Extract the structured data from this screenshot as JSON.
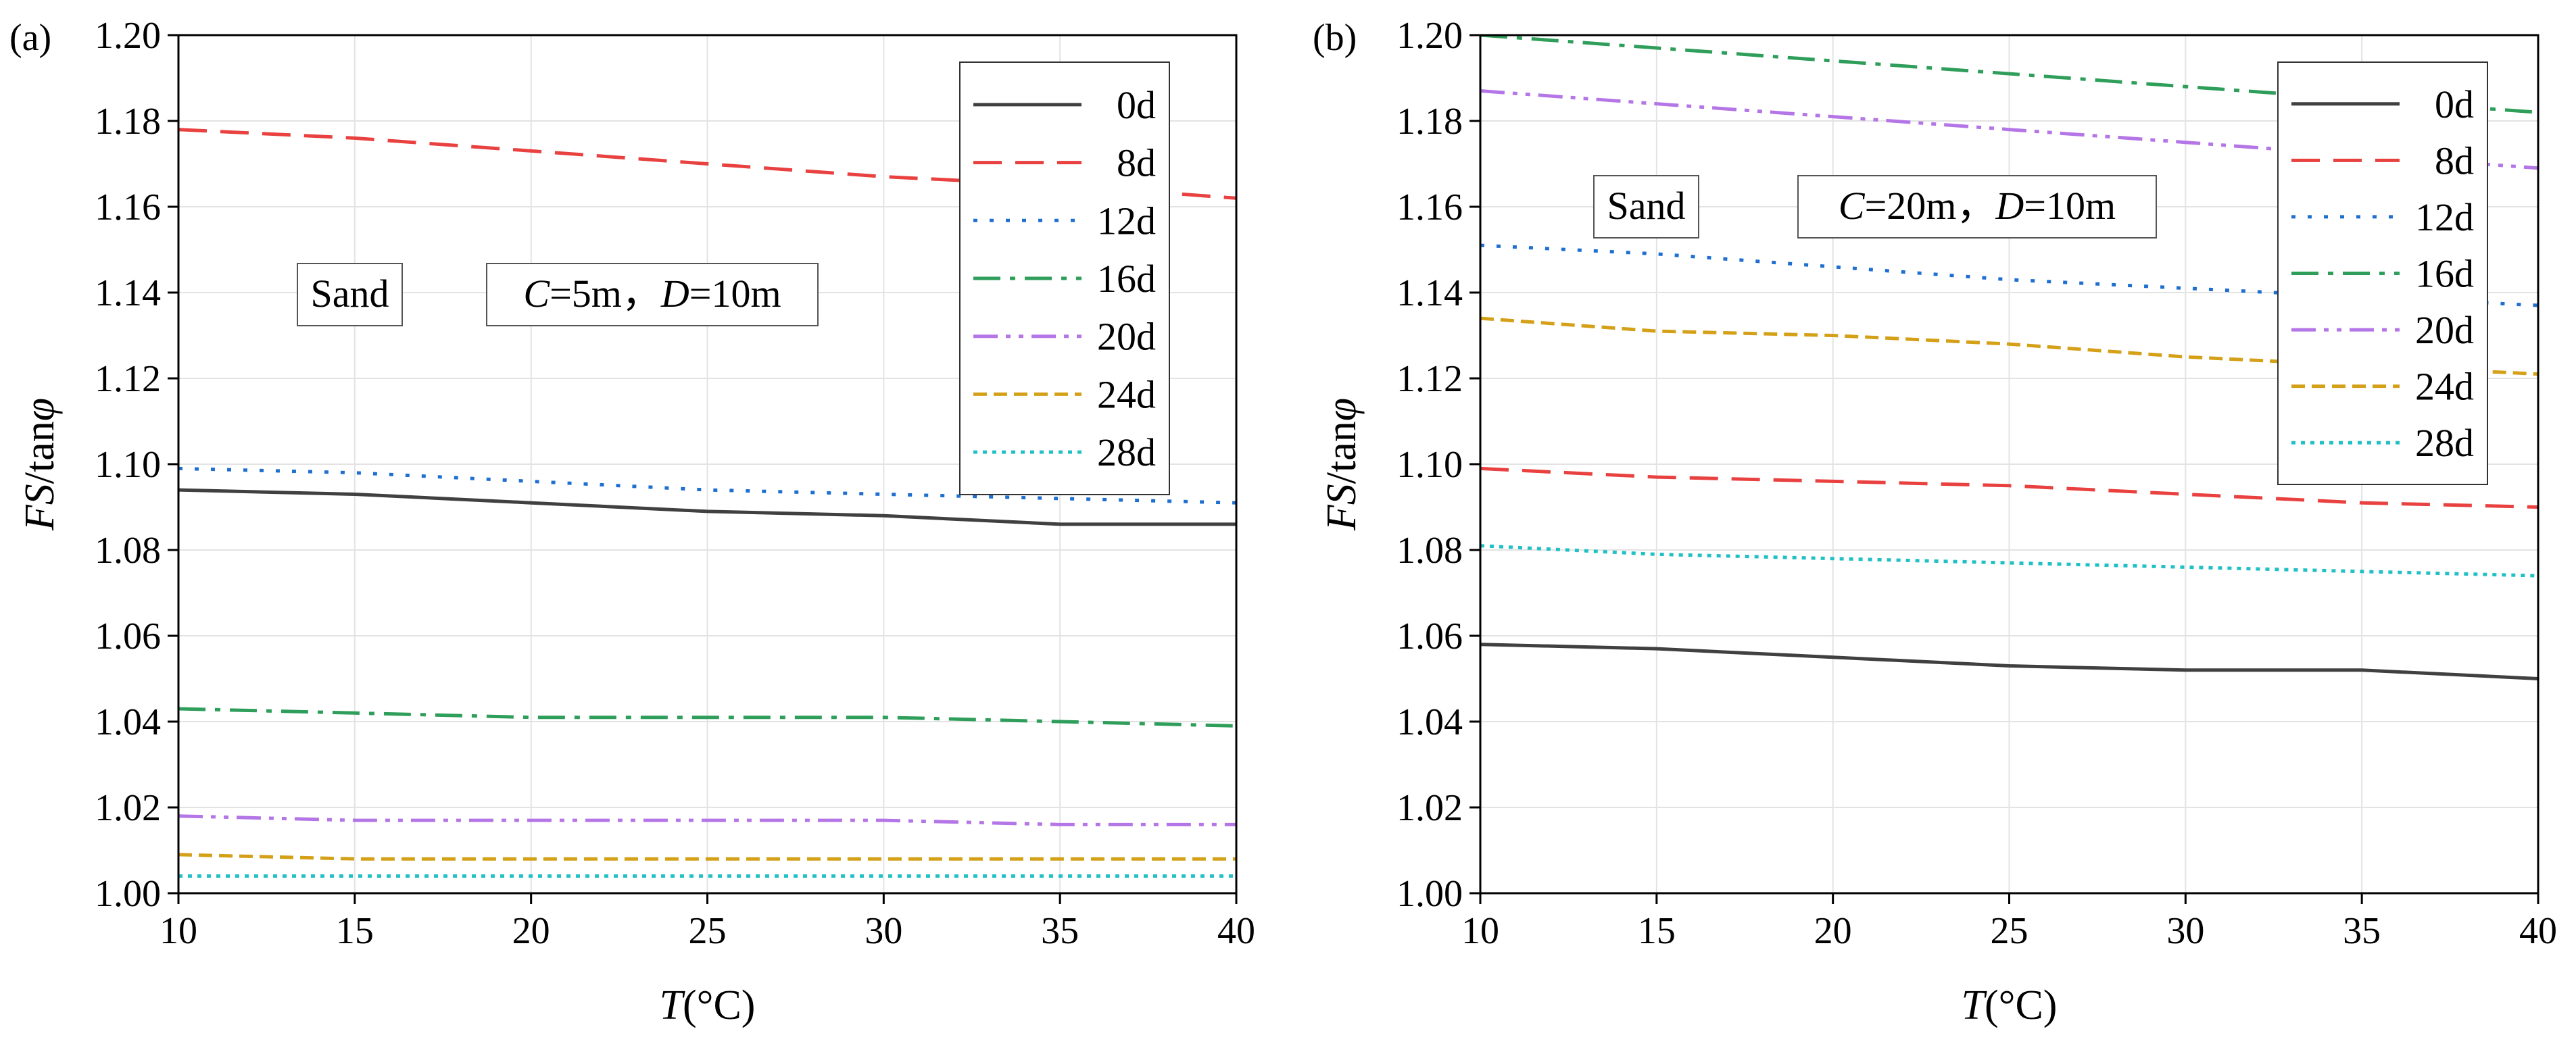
{
  "chart_data": [
    {
      "type": "line",
      "panel_label": "(a)",
      "annotations": {
        "material": "Sand",
        "params_c_var": "C",
        "params_c_val": "=5m，",
        "params_d_var": "D",
        "params_d_val": "=10m"
      },
      "xlabel": {
        "var": "T",
        "unit": "(°C)"
      },
      "ylabel": {
        "var": "FS",
        "rest": "/tan",
        "greek": "φ"
      },
      "xlim": [
        10,
        40
      ],
      "ylim": [
        1.0,
        1.2
      ],
      "xticks": [
        10,
        15,
        20,
        25,
        30,
        35,
        40
      ],
      "yticks": [
        1.0,
        1.02,
        1.04,
        1.06,
        1.08,
        1.1,
        1.12,
        1.14,
        1.16,
        1.18,
        1.2
      ],
      "grid": true,
      "legend_position": "top-right",
      "x": [
        10,
        15,
        20,
        25,
        30,
        35,
        40
      ],
      "series": [
        {
          "name": "0d",
          "color": "#404040",
          "dash": "solid",
          "values": [
            1.094,
            1.093,
            1.091,
            1.089,
            1.088,
            1.086,
            1.086
          ]
        },
        {
          "name": "8d",
          "color": "#e8413f",
          "dash": "dash",
          "values": [
            1.178,
            1.176,
            1.173,
            1.17,
            1.167,
            1.165,
            1.162
          ]
        },
        {
          "name": "12d",
          "color": "#1f6fd1",
          "dash": "dot",
          "values": [
            1.099,
            1.098,
            1.096,
            1.094,
            1.093,
            1.092,
            1.091
          ]
        },
        {
          "name": "16d",
          "color": "#2e9e5a",
          "dash": "dashdot",
          "values": [
            1.043,
            1.042,
            1.041,
            1.041,
            1.041,
            1.04,
            1.039
          ]
        },
        {
          "name": "20d",
          "color": "#b476e6",
          "dash": "dashdotdot",
          "values": [
            1.018,
            1.017,
            1.017,
            1.017,
            1.017,
            1.016,
            1.016
          ]
        },
        {
          "name": "24d",
          "color": "#d4a017",
          "dash": "shortdash",
          "values": [
            1.009,
            1.008,
            1.008,
            1.008,
            1.008,
            1.008,
            1.008
          ]
        },
        {
          "name": "28d",
          "color": "#20c0c4",
          "dash": "densedot",
          "values": [
            1.004,
            1.004,
            1.004,
            1.004,
            1.004,
            1.004,
            1.004
          ]
        }
      ]
    },
    {
      "type": "line",
      "panel_label": "(b)",
      "annotations": {
        "material": "Sand",
        "params_c_var": "C",
        "params_c_val": "=20m，",
        "params_d_var": "D",
        "params_d_val": "=10m"
      },
      "xlabel": {
        "var": "T",
        "unit": "(°C)"
      },
      "ylabel": {
        "var": "FS",
        "rest": "/tan",
        "greek": "φ"
      },
      "xlim": [
        10,
        40
      ],
      "ylim": [
        1.0,
        1.2
      ],
      "xticks": [
        10,
        15,
        20,
        25,
        30,
        35,
        40
      ],
      "yticks": [
        1.0,
        1.02,
        1.04,
        1.06,
        1.08,
        1.1,
        1.12,
        1.14,
        1.16,
        1.18,
        1.2
      ],
      "grid": true,
      "legend_position": "top-right",
      "x": [
        10,
        15,
        20,
        25,
        30,
        35,
        40
      ],
      "series": [
        {
          "name": "0d",
          "color": "#404040",
          "dash": "solid",
          "values": [
            1.058,
            1.057,
            1.055,
            1.053,
            1.052,
            1.052,
            1.05
          ]
        },
        {
          "name": "8d",
          "color": "#e8413f",
          "dash": "dash",
          "values": [
            1.099,
            1.097,
            1.096,
            1.095,
            1.093,
            1.091,
            1.09
          ]
        },
        {
          "name": "12d",
          "color": "#1f6fd1",
          "dash": "dot",
          "values": [
            1.151,
            1.149,
            1.146,
            1.143,
            1.141,
            1.139,
            1.137
          ]
        },
        {
          "name": "16d",
          "color": "#2e9e5a",
          "dash": "dashdot",
          "values": [
            1.2,
            1.197,
            1.194,
            1.191,
            1.188,
            1.185,
            1.182
          ]
        },
        {
          "name": "20d",
          "color": "#b476e6",
          "dash": "dashdotdot",
          "values": [
            1.187,
            1.184,
            1.181,
            1.178,
            1.175,
            1.172,
            1.169
          ]
        },
        {
          "name": "24d",
          "color": "#d4a017",
          "dash": "shortdash",
          "values": [
            1.134,
            1.131,
            1.13,
            1.128,
            1.125,
            1.123,
            1.121
          ]
        },
        {
          "name": "28d",
          "color": "#20c0c4",
          "dash": "densedot",
          "values": [
            1.081,
            1.079,
            1.078,
            1.077,
            1.076,
            1.075,
            1.074
          ]
        }
      ]
    }
  ]
}
